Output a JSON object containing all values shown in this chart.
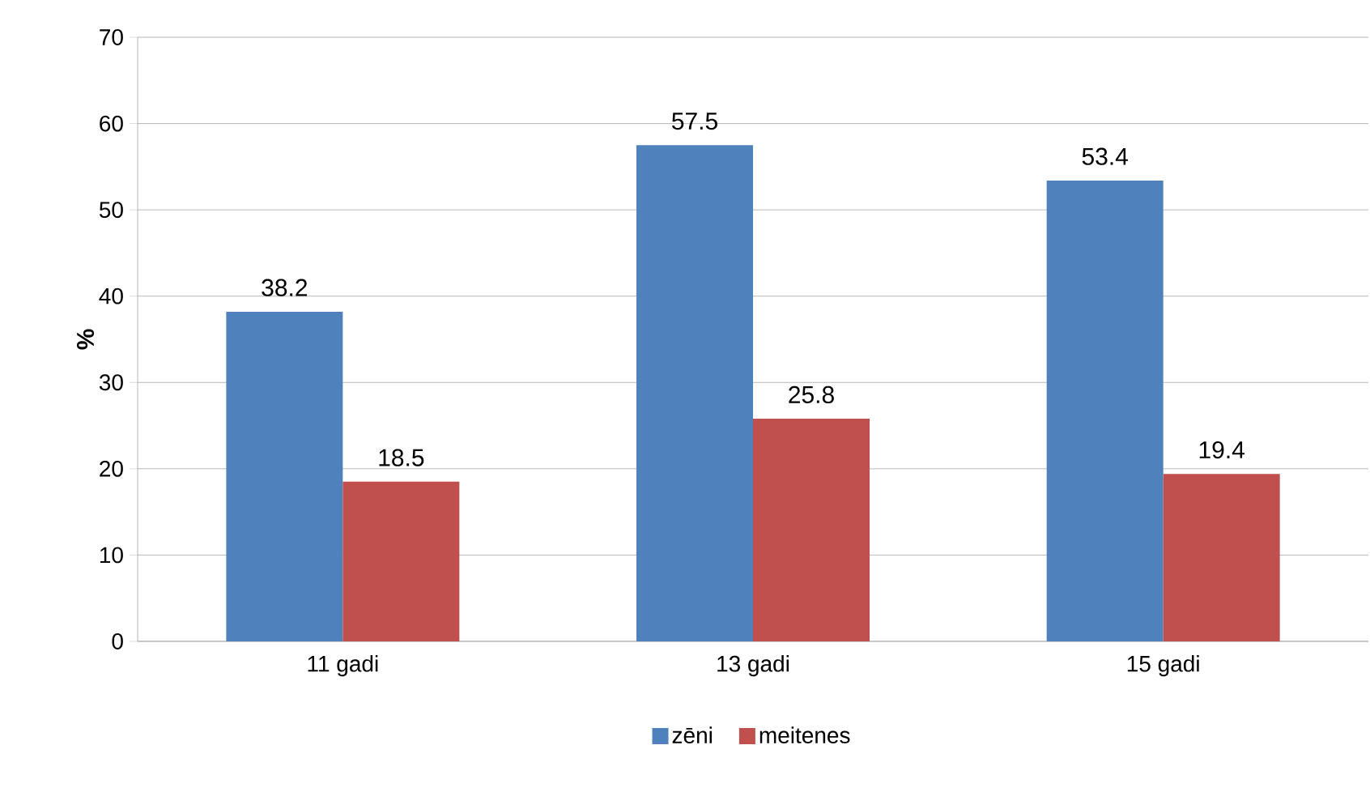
{
  "chart_data": {
    "type": "bar",
    "ylabel": "**%**",
    "categories": [
      "11 gadi",
      "13 gadi",
      "15 gadi"
    ],
    "series": [
      {
        "name": "zēni",
        "color": "#4f81bd",
        "values": [
          38.2,
          57.5,
          53.4
        ]
      },
      {
        "name": "meitenes",
        "color": "#c0504d",
        "values": [
          18.5,
          25.8,
          19.4
        ]
      }
    ],
    "ylim": [
      0,
      70
    ],
    "yticks": [
      0,
      10,
      20,
      30,
      40,
      50,
      60,
      70
    ],
    "grid": "y",
    "legend": "bottom",
    "data_labels": true
  }
}
